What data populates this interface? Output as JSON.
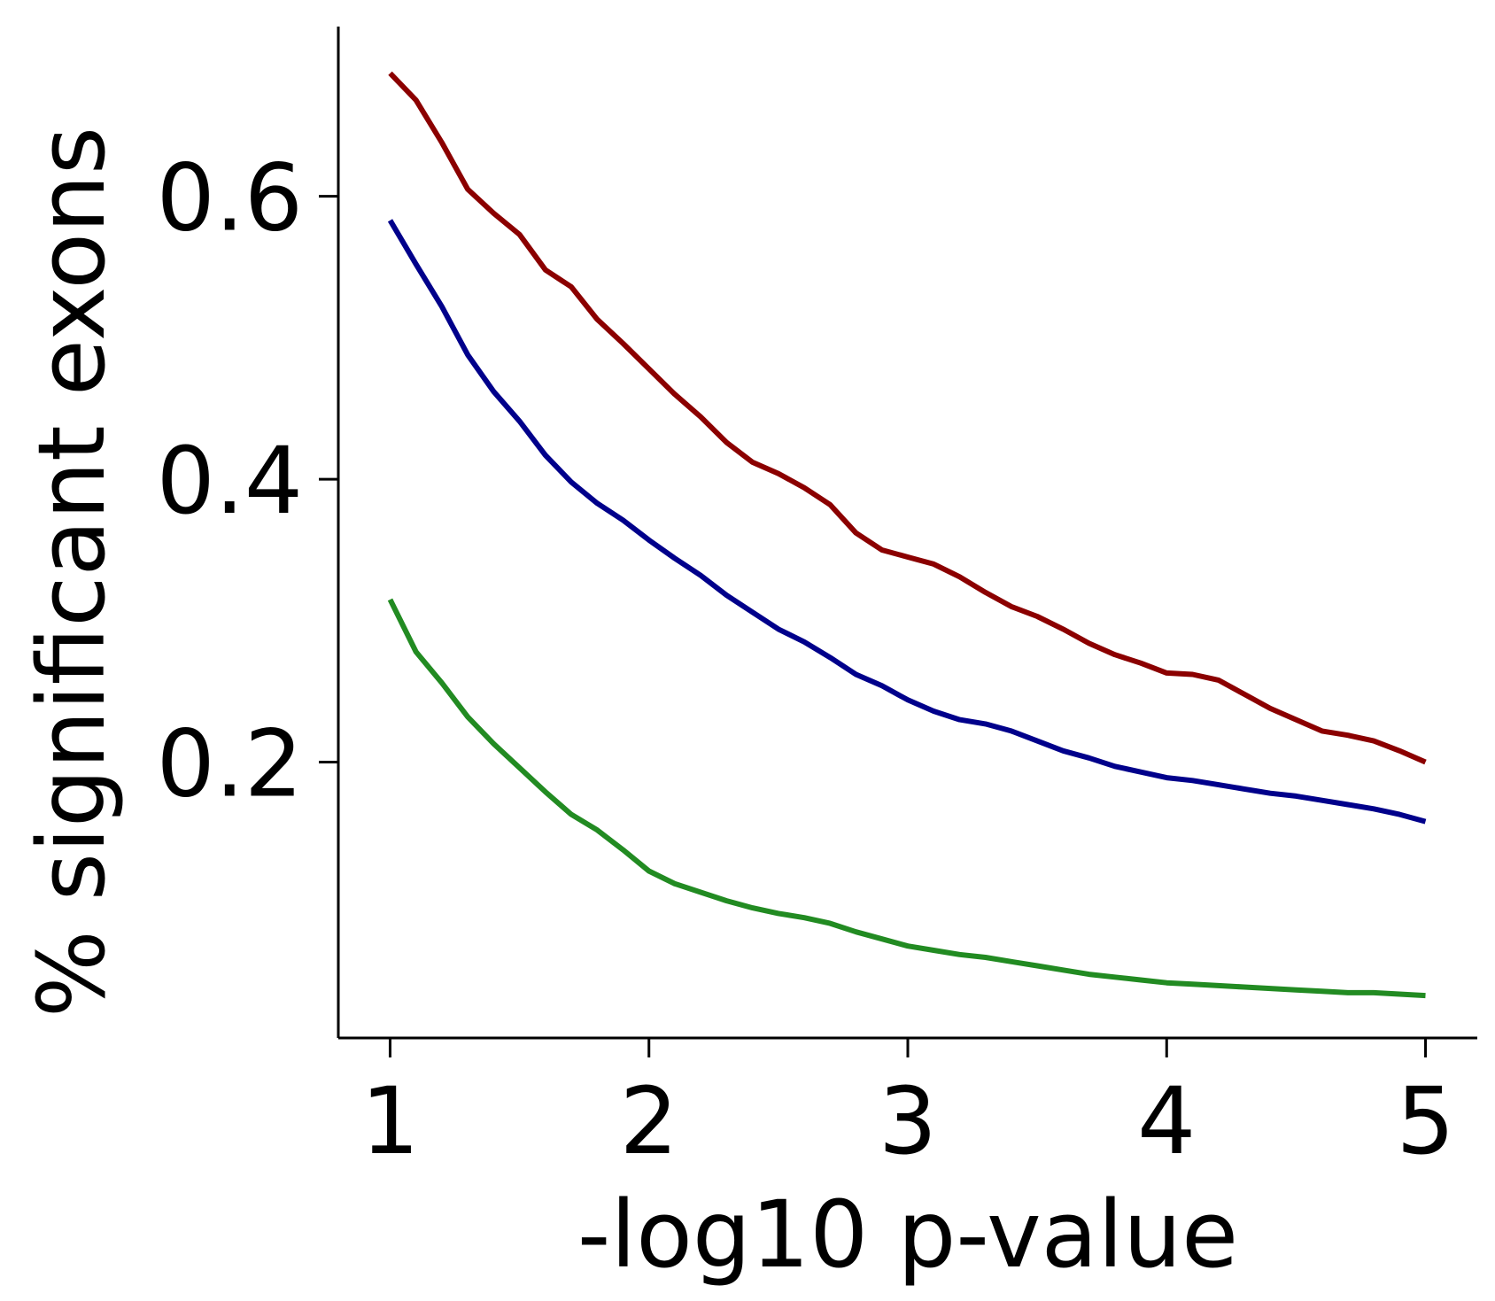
{
  "chart_data": {
    "type": "line",
    "title": "",
    "xlabel": "-log10 p-value",
    "ylabel": "% significant exons",
    "xlim": [
      0.8,
      5.2
    ],
    "ylim": [
      0.005,
      0.72
    ],
    "x_ticks": [
      1,
      2,
      3,
      4,
      5
    ],
    "x_tick_labels": [
      "1",
      "2",
      "3",
      "4",
      "5"
    ],
    "y_ticks": [
      0.2,
      0.4,
      0.6
    ],
    "y_tick_labels": [
      "0.2",
      "0.4",
      "0.6"
    ],
    "grid": false,
    "legend": "none",
    "x": [
      1.0,
      1.1,
      1.2,
      1.3,
      1.4,
      1.5,
      1.6,
      1.7,
      1.8,
      1.9,
      2.0,
      2.1,
      2.2,
      2.3,
      2.4,
      2.5,
      2.6,
      2.7,
      2.8,
      2.9,
      3.0,
      3.1,
      3.2,
      3.3,
      3.4,
      3.5,
      3.6,
      3.7,
      3.8,
      3.9,
      4.0,
      4.1,
      4.2,
      4.3,
      4.4,
      4.5,
      4.6,
      4.7,
      4.8,
      4.9,
      5.0
    ],
    "series": [
      {
        "color": "#8b0000",
        "values": [
          0.687,
          0.668,
          0.638,
          0.605,
          0.588,
          0.573,
          0.548,
          0.536,
          0.513,
          0.496,
          0.478,
          0.46,
          0.444,
          0.426,
          0.412,
          0.404,
          0.394,
          0.382,
          0.362,
          0.35,
          0.345,
          0.34,
          0.331,
          0.32,
          0.31,
          0.303,
          0.294,
          0.284,
          0.276,
          0.27,
          0.263,
          0.262,
          0.258,
          0.248,
          0.238,
          0.23,
          0.222,
          0.219,
          0.215,
          0.208,
          0.2
        ]
      },
      {
        "color": "#00008b",
        "values": [
          0.583,
          0.552,
          0.522,
          0.488,
          0.462,
          0.441,
          0.417,
          0.398,
          0.383,
          0.371,
          0.357,
          0.344,
          0.332,
          0.318,
          0.306,
          0.294,
          0.285,
          0.274,
          0.262,
          0.254,
          0.244,
          0.236,
          0.23,
          0.227,
          0.222,
          0.215,
          0.208,
          0.203,
          0.197,
          0.193,
          0.189,
          0.187,
          0.184,
          0.181,
          0.178,
          0.176,
          0.173,
          0.17,
          0.167,
          0.163,
          0.158
        ]
      },
      {
        "color": "#228b22",
        "values": [
          0.315,
          0.278,
          0.256,
          0.232,
          0.213,
          0.196,
          0.179,
          0.163,
          0.152,
          0.138,
          0.123,
          0.114,
          0.108,
          0.102,
          0.097,
          0.093,
          0.09,
          0.086,
          0.08,
          0.075,
          0.07,
          0.067,
          0.064,
          0.062,
          0.059,
          0.056,
          0.053,
          0.05,
          0.048,
          0.046,
          0.044,
          0.043,
          0.042,
          0.041,
          0.04,
          0.039,
          0.038,
          0.037,
          0.037,
          0.036,
          0.035
        ]
      }
    ]
  }
}
